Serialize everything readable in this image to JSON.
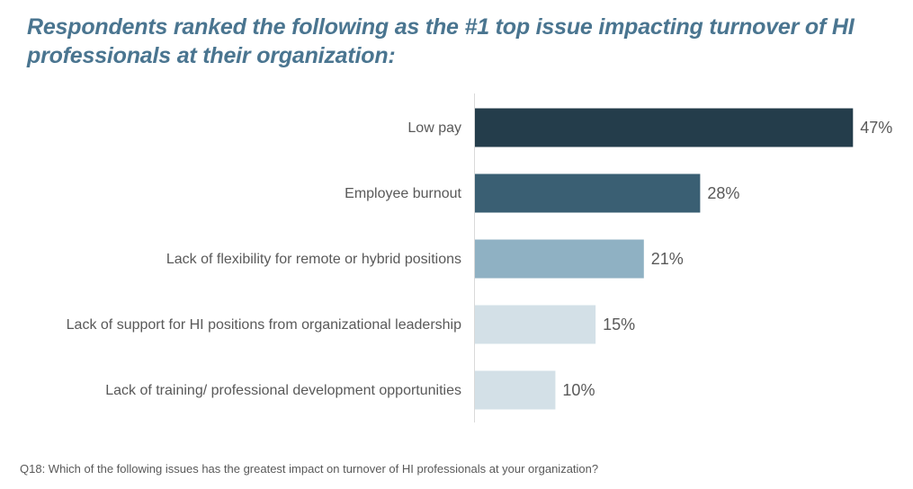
{
  "colors": {
    "title": "#4a7590",
    "text": "#595959",
    "axis": "#d9d9d9",
    "bars": [
      "#243d4b",
      "#3a5f73",
      "#8fb1c3",
      "#d3e0e7",
      "#d3e0e7"
    ]
  },
  "chart_data": {
    "type": "bar",
    "orientation": "horizontal",
    "title": "Respondents ranked the following as the #1 top issue impacting turnover of HI professionals at their organization:",
    "categories": [
      "Low pay",
      "Employee burnout",
      "Lack of flexibility for remote or hybrid positions",
      "Lack of support for HI positions from organizational leadership",
      "Lack of training/ professional development opportunities"
    ],
    "values": [
      47,
      28,
      21,
      15,
      10
    ],
    "value_labels": [
      "47%",
      "28%",
      "21%",
      "15%",
      "10%"
    ],
    "unit": "%",
    "xlim": [
      0,
      52
    ],
    "grid": false,
    "legend": "none"
  },
  "footnote": "Q18: Which of the following issues has the greatest impact on turnover of HI professionals at your organization?"
}
